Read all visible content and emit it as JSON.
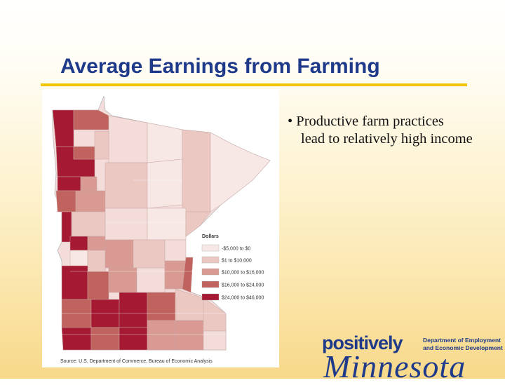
{
  "slide": {
    "title": "Average Earnings from Farming",
    "bullet_line1": "• Productive farm practices",
    "bullet_line2": "lead to relatively high income"
  },
  "map": {
    "legend_title": "Dollars",
    "legend": [
      {
        "label": "-$5,000 to $0",
        "color": "#f7e8e6"
      },
      {
        "label": "$1 to $10,000",
        "color": "#ecc8c3"
      },
      {
        "label": "$10,000 to $16,000",
        "color": "#d99a93"
      },
      {
        "label": "$16,000 to $24,000",
        "color": "#c0625d"
      },
      {
        "label": "$24,000 to $46,000",
        "color": "#a51932"
      }
    ],
    "source": "Source: U.S. Department of Commerce, Bureau of Economic Analysis"
  },
  "logo": {
    "word1": "positively",
    "word2": "Minnesota",
    "dept_line1": "Department of Employment",
    "dept_line2": "and Economic Development"
  }
}
